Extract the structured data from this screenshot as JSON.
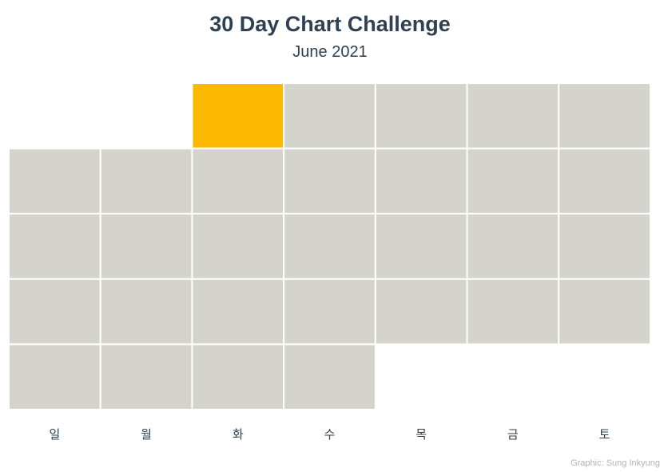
{
  "chart_data": {
    "type": "heatmap",
    "title": "30 Day Chart Challenge",
    "subtitle": "June 2021",
    "caption": "Graphic: Sung Inkyung",
    "weekdays": [
      "일",
      "월",
      "화",
      "수",
      "목",
      "금",
      "토"
    ],
    "first_weekday_index": 2,
    "days_in_month": 30,
    "highlighted_days": [
      1
    ],
    "colors": {
      "highlight": "#fbb900",
      "default": "#d4d4cc",
      "cell_border": "#ffffff",
      "text": "#2e4051",
      "caption": "#b0b3b7"
    }
  }
}
